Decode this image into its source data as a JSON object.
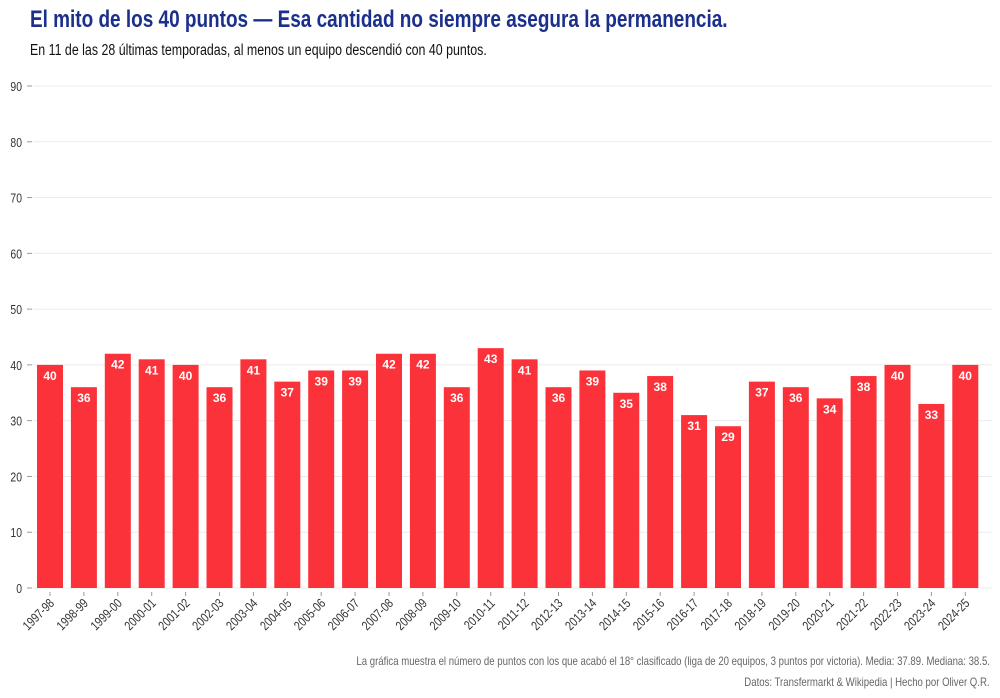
{
  "title": "El mito de los 40 puntos — Esa cantidad no siempre asegura la permanencia.",
  "subtitle": "En 11 de las 28 últimas temporadas, al menos un equipo descendió con 40 puntos.",
  "footer": {
    "note": "La gráfica muestra el número de puntos con los que acabó el 18° clasificado (liga de 20 equipos, 3 puntos por victoria). Media: 37.89. Mediana: 38.5.",
    "credit": "Datos: Transfermarkt & Wikipedia | Hecho por Oliver Q.R."
  },
  "chart_data": {
    "type": "bar",
    "title": "El mito de los 40 puntos — Esa cantidad no siempre asegura la permanencia.",
    "xlabel": "",
    "ylabel": "",
    "ylim": [
      0,
      90
    ],
    "yticks": [
      0,
      10,
      20,
      30,
      40,
      50,
      60,
      70,
      80,
      90
    ],
    "grid": true,
    "bar_color": "#fc323a",
    "data_labels": true,
    "categories": [
      "1997-98",
      "1998-99",
      "1999-00",
      "2000-01",
      "2001-02",
      "2002-03",
      "2003-04",
      "2004-05",
      "2005-06",
      "2006-07",
      "2007-08",
      "2008-09",
      "2009-10",
      "2010-11",
      "2011-12",
      "2012-13",
      "2013-14",
      "2014-15",
      "2015-16",
      "2016-17",
      "2017-18",
      "2018-19",
      "2019-20",
      "2020-21",
      "2021-22",
      "2022-23",
      "2023-24",
      "2024-25"
    ],
    "values": [
      40,
      36,
      42,
      41,
      40,
      36,
      41,
      37,
      39,
      39,
      42,
      42,
      36,
      43,
      41,
      36,
      39,
      35,
      38,
      31,
      29,
      37,
      36,
      34,
      38,
      40,
      33,
      40
    ]
  }
}
